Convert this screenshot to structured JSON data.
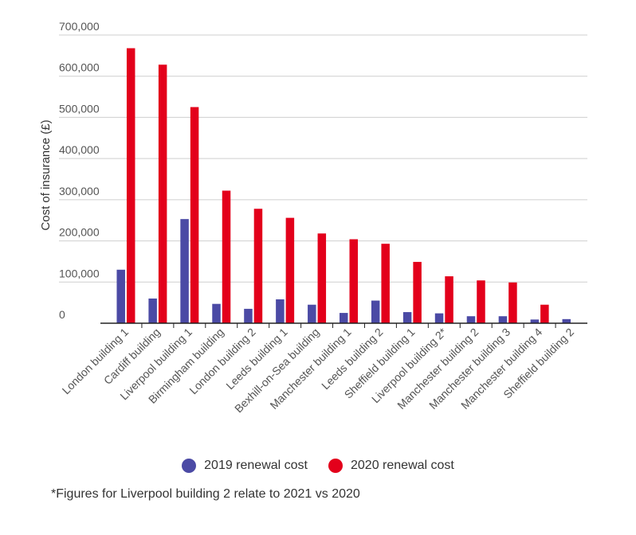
{
  "chart_data": {
    "type": "bar",
    "title": "",
    "xlabel": "",
    "ylabel": "Cost of insurance (£)",
    "ylim": [
      0,
      700000
    ],
    "yticks": [
      0,
      100000,
      200000,
      300000,
      400000,
      500000,
      600000,
      700000
    ],
    "ytick_labels": [
      "0",
      "100,000",
      "200,000",
      "300,000",
      "400,000",
      "500,000",
      "600,000",
      "700,000"
    ],
    "grid": true,
    "legend_position": "bottom-center",
    "categories": [
      "London building 1",
      "Cardiff building",
      "Liverpool building 1",
      "Birmingham building",
      "London building 2",
      "Leeds building 1",
      "Bexhill-on-Sea building",
      "Manchester building 1",
      "Leeds building 2",
      "Sheffield building 1",
      "Liverpool building 2*",
      "Manchester building 2",
      "Manchester building 3",
      "Manchester building 4",
      "Sheffield building 2"
    ],
    "series": [
      {
        "name": "2019 renewal cost",
        "color": "#4b4aa5",
        "values": [
          130000,
          60000,
          253000,
          47000,
          35000,
          58000,
          45000,
          25000,
          55000,
          27000,
          24000,
          17000,
          17000,
          9000,
          10000
        ]
      },
      {
        "name": "2020 renewal cost",
        "color": "#e3001b",
        "values": [
          668000,
          628000,
          525000,
          322000,
          278000,
          256000,
          218000,
          204000,
          193000,
          149000,
          114000,
          104000,
          99000,
          45000,
          0
        ]
      }
    ]
  },
  "legend": {
    "item_2019": "2019 renewal cost",
    "item_2020": "2020 renewal cost",
    "color_2019": "#4b4aa5",
    "color_2020": "#e3001b"
  },
  "footnote": "*Figures for Liverpool building 2 relate to 2021 vs 2020"
}
